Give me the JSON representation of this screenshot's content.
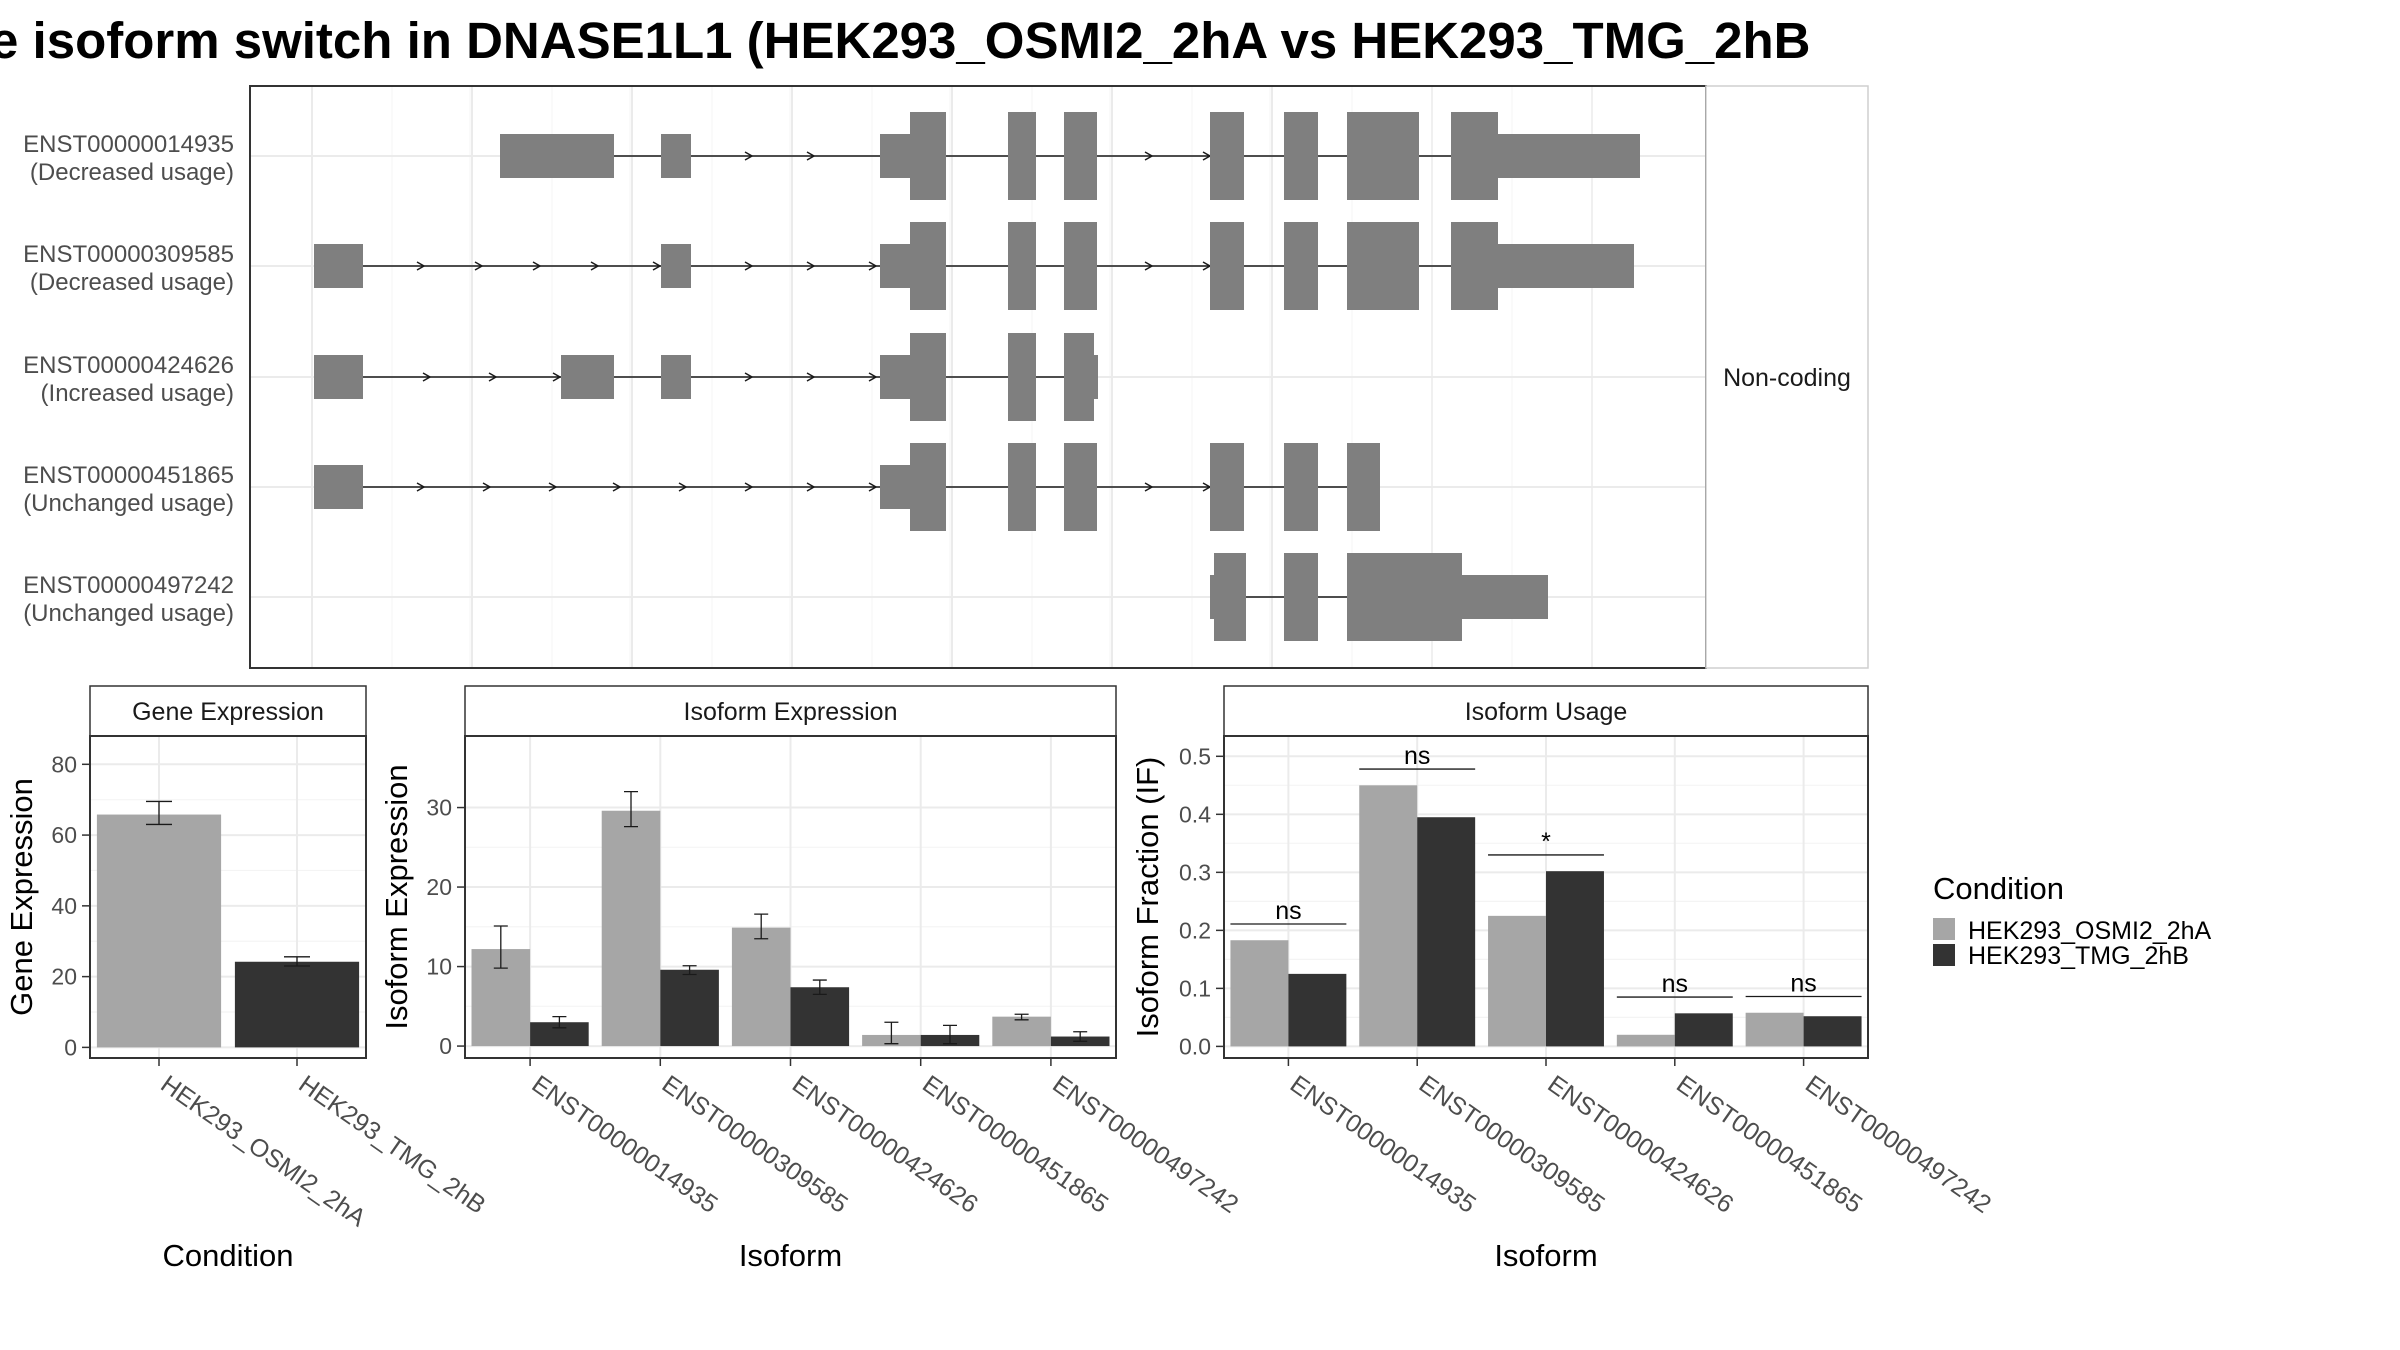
{
  "title": "e isoform switch in DNASE1L1 (HEK293_OSMI2_2hA vs HEK293_TMG_2hB",
  "colors": {
    "cond1": "#a6a6a6",
    "cond2": "#333333",
    "exon": "#7f7f7f",
    "grid": "#ebebeb",
    "panel_border": "#333333"
  },
  "structure": {
    "facet_label": "Non-coding",
    "transcripts": [
      {
        "id": "ENST00000014935",
        "usage": "(Decreased usage)"
      },
      {
        "id": "ENST00000309585",
        "usage": "(Decreased usage)"
      },
      {
        "id": "ENST00000424626",
        "usage": "(Increased usage)"
      },
      {
        "id": "ENST00000451865",
        "usage": "(Unchanged usage)"
      },
      {
        "id": "ENST00000497242",
        "usage": "(Unchanged usage)"
      }
    ]
  },
  "chart_data": [
    {
      "type": "bar",
      "title": "Gene Expression",
      "xlabel": "Condition",
      "ylabel": "Gene Expression",
      "categories": [
        "HEK293_OSMI2_2hA",
        "HEK293_TMG_2hB"
      ],
      "values": [
        65.8,
        24.2
      ],
      "errors": [
        [
          63.0,
          69.5
        ],
        [
          23.0,
          25.6
        ]
      ],
      "yticks": [
        0,
        20,
        40,
        60,
        80
      ],
      "ylim": [
        -3,
        88
      ]
    },
    {
      "type": "bar",
      "title": "Isoform Expression",
      "xlabel": "Isoform",
      "ylabel": "Isoform Expression",
      "categories": [
        "ENST00000014935",
        "ENST00000309585",
        "ENST00000424626",
        "ENST00000451865",
        "ENST00000497242"
      ],
      "series": [
        {
          "name": "HEK293_OSMI2_2hA",
          "values": [
            12.2,
            29.6,
            14.9,
            1.4,
            3.7
          ],
          "errors": [
            [
              9.8,
              15.1
            ],
            [
              27.6,
              32.0
            ],
            [
              13.5,
              16.6
            ],
            [
              0.3,
              3.0
            ],
            [
              3.3,
              4.0
            ]
          ]
        },
        {
          "name": "HEK293_TMG_2hB",
          "values": [
            3.0,
            9.6,
            7.4,
            1.4,
            1.2
          ],
          "errors": [
            [
              2.3,
              3.7
            ],
            [
              9.0,
              10.1
            ],
            [
              6.5,
              8.3
            ],
            [
              0.3,
              2.6
            ],
            [
              0.6,
              1.8
            ]
          ]
        }
      ],
      "yticks": [
        0,
        10,
        20,
        30
      ],
      "ylim": [
        -1.5,
        39
      ]
    },
    {
      "type": "bar",
      "title": "Isoform Usage",
      "xlabel": "Isoform",
      "ylabel": "Isoform Fraction (IF)",
      "categories": [
        "ENST00000014935",
        "ENST00000309585",
        "ENST00000424626",
        "ENST00000451865",
        "ENST00000497242"
      ],
      "series": [
        {
          "name": "HEK293_OSMI2_2hA",
          "values": [
            0.183,
            0.45,
            0.225,
            0.02,
            0.058
          ]
        },
        {
          "name": "HEK293_TMG_2hB",
          "values": [
            0.125,
            0.395,
            0.302,
            0.057,
            0.052
          ]
        }
      ],
      "significance": [
        "ns",
        "ns",
        "*",
        "ns",
        "ns"
      ],
      "yticks": [
        0.0,
        0.1,
        0.2,
        0.3,
        0.4,
        0.5
      ],
      "ylim": [
        -0.02,
        0.535
      ]
    }
  ],
  "legend": {
    "title": "Condition",
    "entries": [
      "HEK293_OSMI2_2hA",
      "HEK293_TMG_2hB"
    ]
  }
}
